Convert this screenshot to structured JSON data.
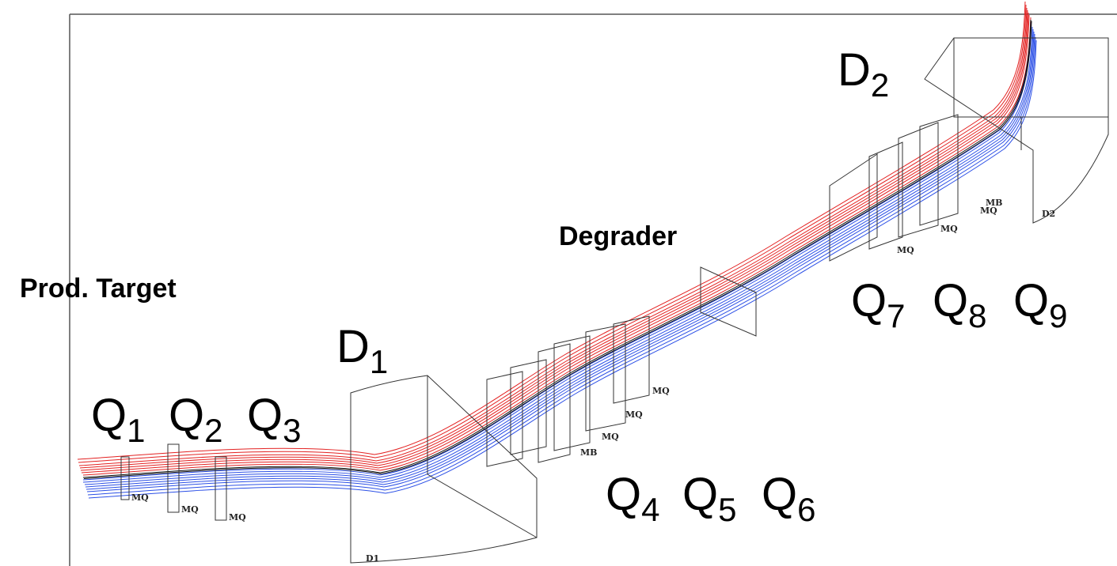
{
  "labels": {
    "production_target": "Prod. Target",
    "degrader": "Degrader"
  },
  "dipoles": [
    {
      "main": "D",
      "sub": "1"
    },
    {
      "main": "D",
      "sub": "2"
    }
  ],
  "quadrupoles": [
    {
      "main": "Q",
      "sub": "1"
    },
    {
      "main": "Q",
      "sub": "2"
    },
    {
      "main": "Q",
      "sub": "3"
    },
    {
      "main": "Q",
      "sub": "4"
    },
    {
      "main": "Q",
      "sub": "5"
    },
    {
      "main": "Q",
      "sub": "6"
    },
    {
      "main": "Q",
      "sub": "7"
    },
    {
      "main": "Q",
      "sub": "8"
    },
    {
      "main": "Q",
      "sub": "9"
    }
  ],
  "element_tags": [
    "MQ",
    "MQ",
    "MQ",
    "MQ",
    "MQ",
    "MQ",
    "MB",
    "MQ",
    "MQ",
    "MQ",
    "MB",
    "D1",
    "D2"
  ]
}
